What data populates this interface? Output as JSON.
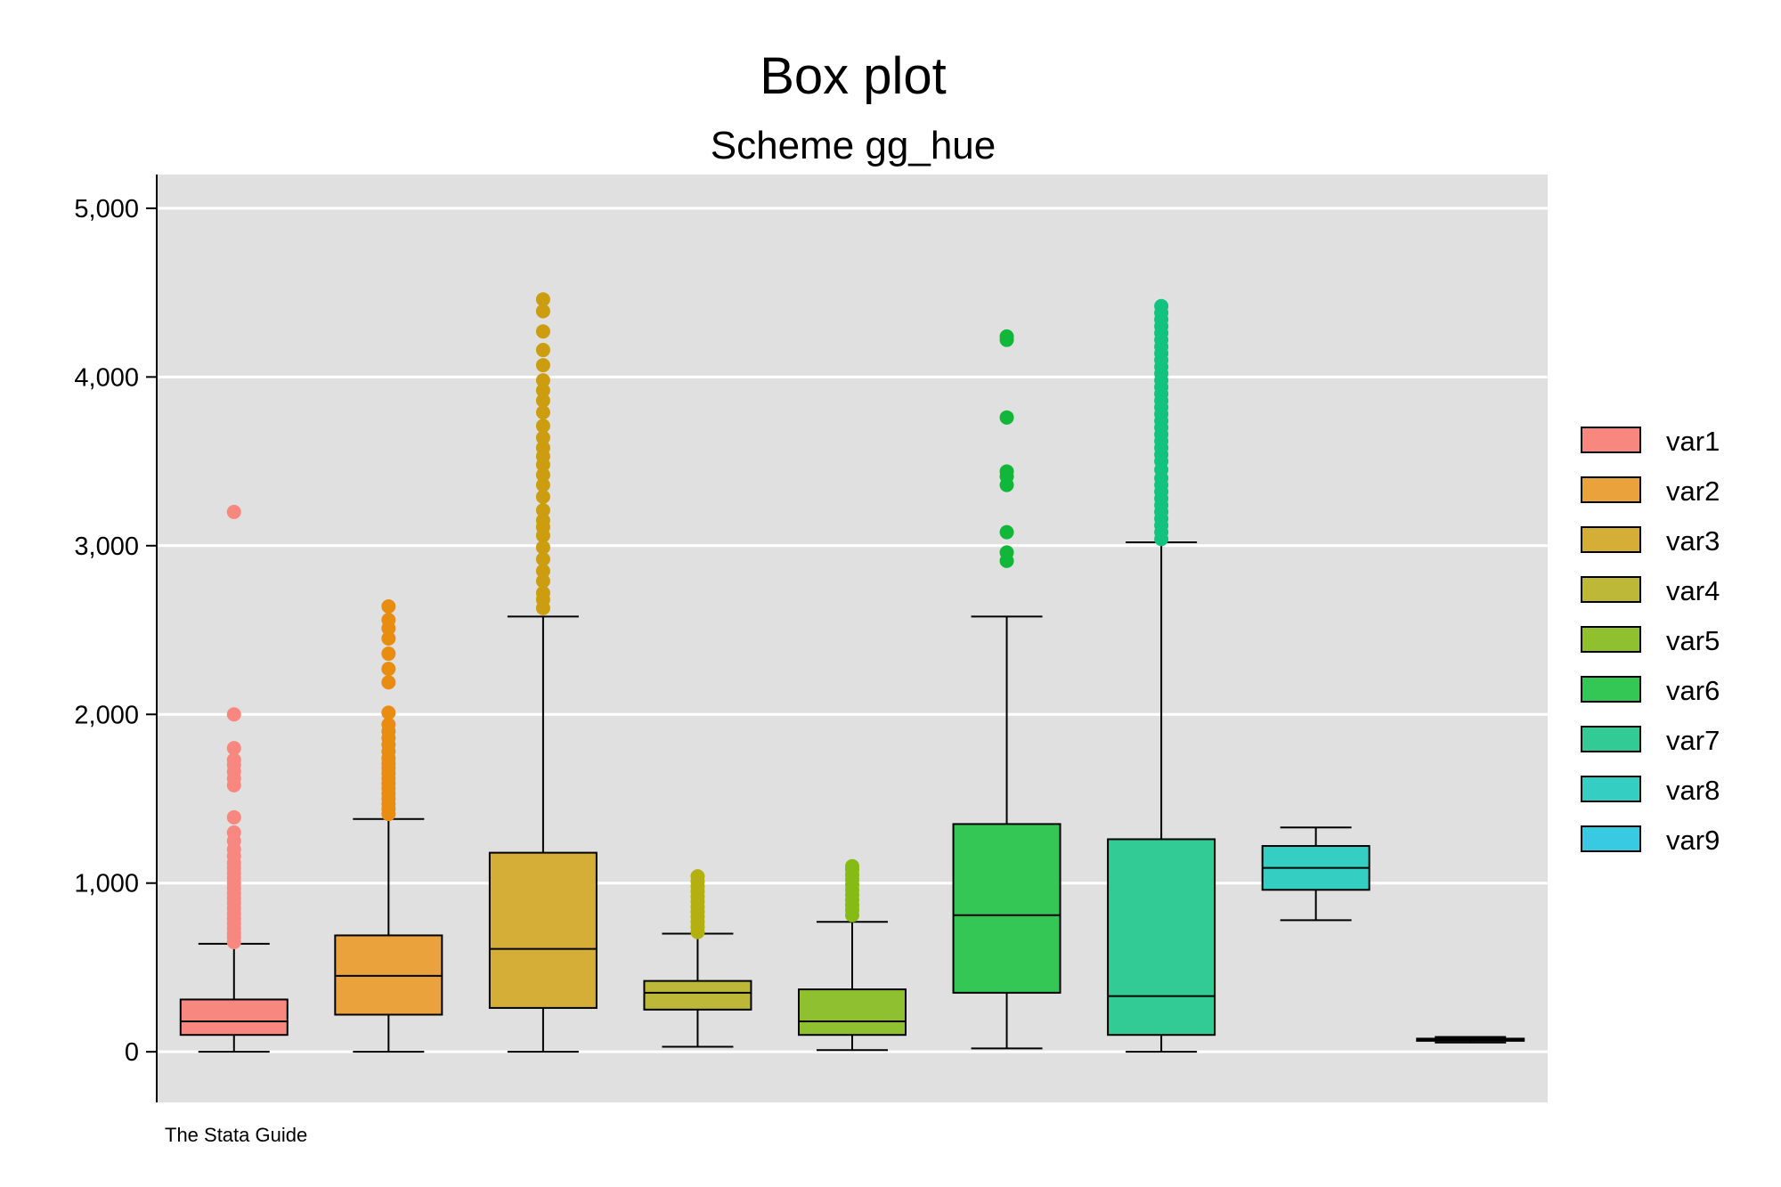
{
  "chart_data": {
    "type": "box",
    "title": "Box plot",
    "subtitle": "Scheme gg_hue",
    "note": "The Stata Guide",
    "ylim": [
      -300,
      5200
    ],
    "yticks": [
      0,
      1000,
      2000,
      3000,
      4000,
      5000
    ],
    "ytick_labels": [
      "0",
      "1,000",
      "2,000",
      "3,000",
      "4,000",
      "5,000"
    ],
    "legend_position": "right",
    "series": [
      {
        "name": "var1",
        "color": "#F8877F",
        "outlier_color": "#F8877F",
        "min": 0,
        "q1": 100,
        "median": 180,
        "q3": 310,
        "max": 640,
        "outliers": [
          650,
          680,
          700,
          730,
          760,
          790,
          820,
          850,
          880,
          910,
          940,
          970,
          1000,
          1030,
          1060,
          1090,
          1120,
          1160,
          1200,
          1250,
          1300,
          1390,
          1580,
          1620,
          1660,
          1700,
          1730,
          1800,
          2000,
          3200
        ]
      },
      {
        "name": "var2",
        "color": "#E9A23C",
        "outlier_color": "#E88D10",
        "min": 0,
        "q1": 220,
        "median": 450,
        "q3": 690,
        "max": 1380,
        "outliers": [
          1410,
          1440,
          1470,
          1500,
          1530,
          1560,
          1590,
          1620,
          1650,
          1680,
          1710,
          1740,
          1780,
          1820,
          1860,
          1900,
          1940,
          2010,
          2190,
          2270,
          2360,
          2450,
          2510,
          2560,
          2640
        ]
      },
      {
        "name": "var3",
        "color": "#D4AE37",
        "outlier_color": "#CD9D10",
        "min": 0,
        "q1": 260,
        "median": 610,
        "q3": 1180,
        "max": 2580,
        "outliers": [
          2630,
          2680,
          2720,
          2790,
          2850,
          2920,
          2990,
          3060,
          3110,
          3150,
          3210,
          3290,
          3360,
          3420,
          3480,
          3530,
          3580,
          3640,
          3710,
          3790,
          3860,
          3920,
          3980,
          4070,
          4160,
          4270,
          4390,
          4460
        ]
      },
      {
        "name": "var4",
        "color": "#BDB838",
        "outlier_color": "#B4B010",
        "min": 30,
        "q1": 250,
        "median": 350,
        "q3": 420,
        "max": 700,
        "outliers": [
          710,
          740,
          770,
          800,
          830,
          860,
          890,
          920,
          950,
          980,
          1010,
          1040
        ]
      },
      {
        "name": "var5",
        "color": "#8FC030",
        "outlier_color": "#86BB16",
        "min": 10,
        "q1": 100,
        "median": 180,
        "q3": 370,
        "max": 770,
        "outliers": [
          810,
          840,
          870,
          900,
          930,
          960,
          990,
          1020,
          1050,
          1080,
          1100
        ]
      },
      {
        "name": "var6",
        "color": "#35C756",
        "outlier_color": "#10B83A",
        "min": 20,
        "q1": 350,
        "median": 810,
        "q3": 1350,
        "max": 2580,
        "outliers": [
          2910,
          2960,
          3080,
          3360,
          3410,
          3440,
          3760,
          4220,
          4240
        ]
      },
      {
        "name": "var7",
        "color": "#33CB95",
        "outlier_color": "#12C27F",
        "min": 0,
        "q1": 100,
        "median": 330,
        "q3": 1260,
        "max": 3020,
        "outliers": [
          3040,
          3080,
          3120,
          3160,
          3200,
          3240,
          3280,
          3320,
          3360,
          3400,
          3450,
          3500,
          3540,
          3580,
          3620,
          3660,
          3700,
          3740,
          3780,
          3820,
          3860,
          3900,
          3940,
          3980,
          4020,
          4060,
          4100,
          4140,
          4180,
          4220,
          4260,
          4300,
          4340,
          4380,
          4420
        ]
      },
      {
        "name": "var8",
        "color": "#34CEC2",
        "outlier_color": "#34CEC2",
        "min": 780,
        "q1": 960,
        "median": 1090,
        "q3": 1220,
        "max": 1330,
        "outliers": []
      },
      {
        "name": "var9",
        "color": "#38CAE2",
        "outlier_color": "#38CAE2",
        "min": 55,
        "q1": 65,
        "median": 70,
        "q3": 78,
        "max": 88,
        "outliers": []
      }
    ]
  }
}
